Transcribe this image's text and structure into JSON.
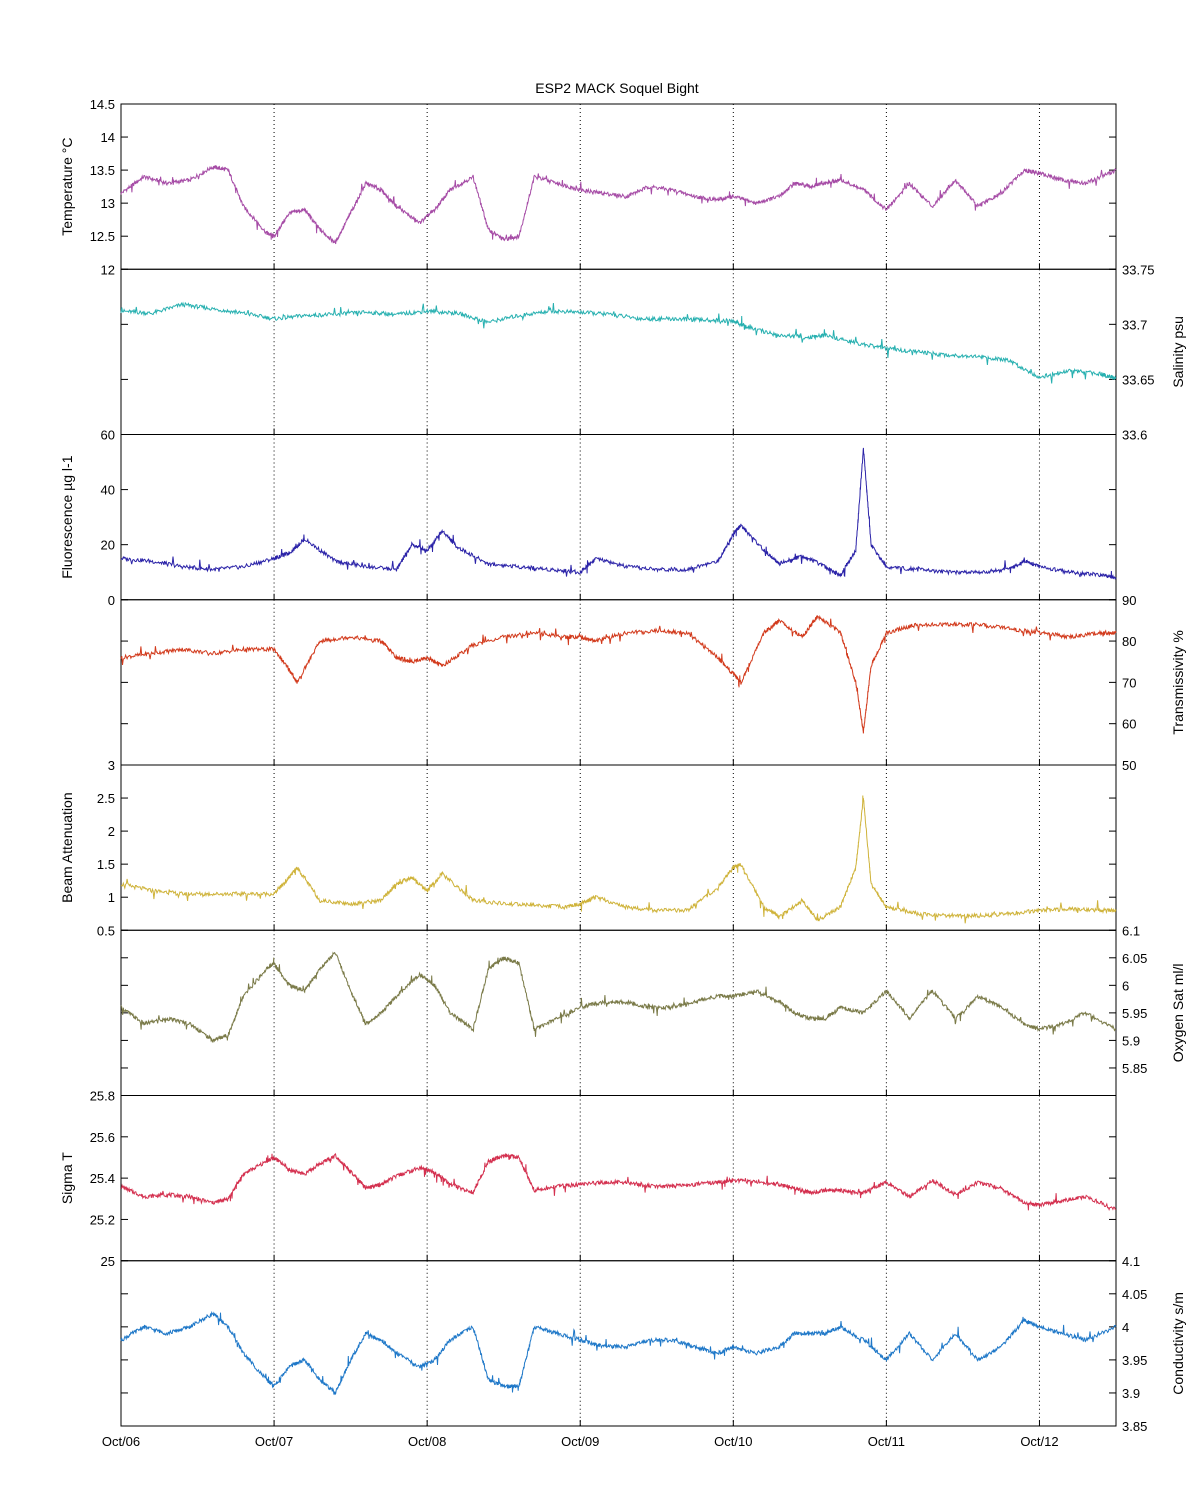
{
  "chart_data": {
    "type": "line",
    "title": "ESP2 MACK  Soquel Bight",
    "x_tick_labels": [
      "Oct/06",
      "Oct/07",
      "Oct/08",
      "Oct/09",
      "Oct/10",
      "Oct/11",
      "Oct/12"
    ],
    "x_tick_values": [
      0,
      1,
      2,
      3,
      4,
      5,
      6
    ],
    "xlim": [
      0,
      6.5
    ],
    "x_grid": "dotted vertical lines at each day",
    "panels": [
      {
        "name": "temperature",
        "ylabel": "Temperature °C",
        "axis_side": "left",
        "ylim": [
          12,
          14.5
        ],
        "ticks": [
          12,
          12.5,
          13,
          13.5,
          14,
          14.5
        ],
        "tick_labels": [
          "12",
          "12.5",
          "13",
          "13.5",
          "14",
          "14.5"
        ],
        "color": "#a64ca6",
        "x": [
          0,
          0.15,
          0.3,
          0.45,
          0.6,
          0.7,
          0.8,
          0.95,
          1.0,
          1.1,
          1.2,
          1.3,
          1.4,
          1.5,
          1.6,
          1.7,
          1.8,
          1.95,
          2.05,
          2.15,
          2.3,
          2.4,
          2.5,
          2.6,
          2.7,
          2.85,
          3.0,
          3.15,
          3.3,
          3.45,
          3.6,
          3.75,
          3.9,
          4.0,
          4.15,
          4.3,
          4.4,
          4.5,
          4.6,
          4.7,
          4.85,
          5.0,
          5.15,
          5.3,
          5.45,
          5.6,
          5.75,
          5.9,
          6.0,
          6.15,
          6.3,
          6.5
        ],
        "y": [
          13.15,
          13.4,
          13.3,
          13.35,
          13.55,
          13.5,
          12.95,
          12.55,
          12.5,
          12.85,
          12.9,
          12.6,
          12.4,
          12.85,
          13.3,
          13.2,
          12.95,
          12.7,
          12.9,
          13.2,
          13.4,
          12.6,
          12.45,
          12.5,
          13.4,
          13.3,
          13.2,
          13.15,
          13.1,
          13.25,
          13.2,
          13.1,
          13.05,
          13.1,
          13.0,
          13.1,
          13.3,
          13.25,
          13.3,
          13.35,
          13.2,
          12.9,
          13.3,
          12.95,
          13.35,
          12.95,
          13.15,
          13.5,
          13.45,
          13.35,
          13.3,
          13.5
        ]
      },
      {
        "name": "salinity",
        "ylabel": "Salinity psu",
        "axis_side": "right",
        "ylim": [
          33.6,
          33.75
        ],
        "ticks": [
          33.6,
          33.65,
          33.7,
          33.75
        ],
        "tick_labels": [
          "33.6",
          "33.65",
          "33.7",
          "33.75"
        ],
        "color": "#27b0b0",
        "x": [
          0,
          0.2,
          0.4,
          0.6,
          0.8,
          1.0,
          1.2,
          1.4,
          1.6,
          1.8,
          2.0,
          2.2,
          2.4,
          2.6,
          2.8,
          3.0,
          3.2,
          3.4,
          3.6,
          3.8,
          4.0,
          4.1,
          4.3,
          4.5,
          4.6,
          4.8,
          5.0,
          5.2,
          5.4,
          5.6,
          5.8,
          6.0,
          6.2,
          6.4,
          6.5
        ],
        "y": [
          33.712,
          33.71,
          33.718,
          33.714,
          33.71,
          33.705,
          33.708,
          33.709,
          33.711,
          33.709,
          33.712,
          33.71,
          33.702,
          33.708,
          33.712,
          33.711,
          33.709,
          33.705,
          33.705,
          33.704,
          33.703,
          33.697,
          33.69,
          33.688,
          33.69,
          33.683,
          33.678,
          33.675,
          33.672,
          33.671,
          33.667,
          33.652,
          33.658,
          33.655,
          33.651
        ]
      },
      {
        "name": "fluorescence",
        "ylabel": "Fluorescence µg l-1",
        "axis_side": "left",
        "ylim": [
          0,
          60
        ],
        "ticks": [
          0,
          20,
          40,
          60
        ],
        "tick_labels": [
          "0",
          "20",
          "40",
          "60"
        ],
        "color": "#2b23a8",
        "x": [
          0,
          0.2,
          0.4,
          0.6,
          0.8,
          1.0,
          1.1,
          1.2,
          1.4,
          1.6,
          1.8,
          1.9,
          2.0,
          2.1,
          2.2,
          2.4,
          2.6,
          2.8,
          3.0,
          3.1,
          3.3,
          3.5,
          3.7,
          3.9,
          4.0,
          4.05,
          4.2,
          4.3,
          4.45,
          4.6,
          4.7,
          4.8,
          4.85,
          4.9,
          5.0,
          5.2,
          5.4,
          5.6,
          5.8,
          5.9,
          6.0,
          6.2,
          6.4,
          6.5
        ],
        "y": [
          15,
          14,
          12,
          11,
          12,
          15,
          17,
          22,
          14,
          12,
          11,
          20,
          18,
          25,
          19,
          13,
          12,
          11,
          10,
          15,
          12,
          11,
          11,
          14,
          24,
          27,
          18,
          13,
          16,
          12,
          9,
          18,
          55,
          20,
          12,
          11,
          10,
          10,
          11,
          14,
          12,
          10,
          9,
          8
        ]
      },
      {
        "name": "transmissivity",
        "ylabel": "Transmissivity %",
        "axis_side": "right",
        "ylim": [
          50,
          90
        ],
        "ticks": [
          50,
          60,
          70,
          80,
          90
        ],
        "tick_labels": [
          "50",
          "60",
          "70",
          "80",
          "90"
        ],
        "color": "#d23a1c",
        "x": [
          0,
          0.2,
          0.4,
          0.6,
          0.8,
          1.0,
          1.1,
          1.15,
          1.3,
          1.5,
          1.7,
          1.8,
          1.9,
          2.0,
          2.1,
          2.3,
          2.5,
          2.7,
          2.9,
          3.0,
          3.1,
          3.3,
          3.5,
          3.7,
          3.9,
          4.0,
          4.05,
          4.2,
          4.3,
          4.45,
          4.55,
          4.7,
          4.8,
          4.85,
          4.9,
          5.0,
          5.2,
          5.4,
          5.6,
          5.8,
          6.0,
          6.2,
          6.4,
          6.5
        ],
        "y": [
          76,
          77,
          78,
          77,
          78,
          78,
          73,
          70,
          80,
          81,
          80,
          76,
          75,
          76,
          74,
          79,
          81,
          82,
          81,
          81,
          80,
          82,
          82.5,
          82,
          76,
          72,
          70,
          82,
          85,
          81,
          86,
          82,
          70,
          58,
          74,
          82,
          84,
          84,
          84,
          83,
          82,
          81,
          82,
          82
        ]
      },
      {
        "name": "beam-attenuation",
        "ylabel": "Beam Attenuation",
        "axis_side": "left",
        "ylim": [
          0.5,
          3
        ],
        "ticks": [
          0.5,
          1,
          1.5,
          2,
          2.5,
          3
        ],
        "tick_labels": [
          "0.5",
          "1",
          "1.5",
          "2",
          "2.5",
          "3"
        ],
        "color": "#cfb33a",
        "x": [
          0,
          0.2,
          0.4,
          0.6,
          0.8,
          1.0,
          1.1,
          1.15,
          1.3,
          1.5,
          1.7,
          1.8,
          1.9,
          2.0,
          2.1,
          2.3,
          2.5,
          2.7,
          2.9,
          3.0,
          3.1,
          3.3,
          3.5,
          3.7,
          3.9,
          4.0,
          4.05,
          4.2,
          4.3,
          4.45,
          4.55,
          4.7,
          4.8,
          4.85,
          4.9,
          5.0,
          5.2,
          5.4,
          5.6,
          5.8,
          6.0,
          6.2,
          6.4,
          6.5
        ],
        "y": [
          1.2,
          1.1,
          1.05,
          1.05,
          1.05,
          1.05,
          1.3,
          1.45,
          0.95,
          0.9,
          0.95,
          1.2,
          1.3,
          1.1,
          1.35,
          0.95,
          0.9,
          0.88,
          0.85,
          0.9,
          1.0,
          0.85,
          0.8,
          0.8,
          1.15,
          1.45,
          1.5,
          0.85,
          0.7,
          0.95,
          0.65,
          0.85,
          1.45,
          2.5,
          1.2,
          0.85,
          0.75,
          0.72,
          0.72,
          0.75,
          0.8,
          0.82,
          0.8,
          0.8
        ]
      },
      {
        "name": "oxygen-sat",
        "ylabel": "Oxygen Sat ml/l",
        "axis_side": "right",
        "ylim": [
          5.8,
          6.1
        ],
        "ticks": [
          5.85,
          5.9,
          5.95,
          6.0,
          6.05,
          6.1
        ],
        "tick_labels": [
          "5.85",
          "5.9",
          "5.95",
          "6",
          "6.05",
          "6.1"
        ],
        "color": "#7a7a48",
        "x": [
          0,
          0.15,
          0.3,
          0.45,
          0.6,
          0.7,
          0.8,
          0.95,
          1.0,
          1.1,
          1.2,
          1.3,
          1.4,
          1.5,
          1.6,
          1.7,
          1.8,
          1.95,
          2.05,
          2.15,
          2.3,
          2.4,
          2.5,
          2.6,
          2.7,
          2.85,
          3.0,
          3.15,
          3.3,
          3.45,
          3.6,
          3.75,
          3.9,
          4.0,
          4.15,
          4.3,
          4.4,
          4.5,
          4.6,
          4.7,
          4.85,
          5.0,
          5.15,
          5.3,
          5.45,
          5.6,
          5.75,
          5.9,
          6.0,
          6.15,
          6.3,
          6.5
        ],
        "y": [
          5.96,
          5.93,
          5.94,
          5.93,
          5.9,
          5.91,
          5.98,
          6.03,
          6.04,
          6.0,
          5.99,
          6.03,
          6.06,
          5.99,
          5.93,
          5.95,
          5.98,
          6.02,
          6.0,
          5.95,
          5.92,
          6.03,
          6.05,
          6.04,
          5.92,
          5.94,
          5.96,
          5.97,
          5.97,
          5.96,
          5.96,
          5.97,
          5.98,
          5.98,
          5.99,
          5.97,
          5.95,
          5.94,
          5.94,
          5.96,
          5.95,
          5.99,
          5.94,
          5.99,
          5.94,
          5.98,
          5.96,
          5.93,
          5.92,
          5.93,
          5.95,
          5.92
        ]
      },
      {
        "name": "sigma-t",
        "ylabel": "Sigma T",
        "axis_side": "left",
        "ylim": [
          25,
          25.8
        ],
        "ticks": [
          25,
          25.2,
          25.4,
          25.6,
          25.8
        ],
        "tick_labels": [
          "25",
          "25.2",
          "25.4",
          "25.6",
          "25.8"
        ],
        "color": "#d4304f",
        "x": [
          0,
          0.15,
          0.3,
          0.45,
          0.6,
          0.7,
          0.8,
          0.95,
          1.0,
          1.1,
          1.2,
          1.3,
          1.4,
          1.5,
          1.6,
          1.7,
          1.8,
          1.95,
          2.05,
          2.15,
          2.3,
          2.4,
          2.5,
          2.6,
          2.7,
          2.85,
          3.0,
          3.15,
          3.3,
          3.45,
          3.6,
          3.75,
          3.9,
          4.0,
          4.15,
          4.3,
          4.4,
          4.5,
          4.6,
          4.7,
          4.85,
          5.0,
          5.15,
          5.3,
          5.45,
          5.6,
          5.75,
          5.9,
          6.0,
          6.15,
          6.3,
          6.5
        ],
        "y": [
          25.36,
          25.31,
          25.32,
          25.31,
          25.28,
          25.3,
          25.42,
          25.48,
          25.5,
          25.44,
          25.42,
          25.47,
          25.51,
          25.43,
          25.35,
          25.37,
          25.41,
          25.45,
          25.43,
          25.37,
          25.33,
          25.48,
          25.51,
          25.5,
          25.34,
          25.36,
          25.37,
          25.38,
          25.38,
          25.36,
          25.36,
          25.37,
          25.38,
          25.39,
          25.38,
          25.37,
          25.35,
          25.33,
          25.34,
          25.34,
          25.33,
          25.38,
          25.31,
          25.39,
          25.32,
          25.38,
          25.35,
          25.28,
          25.27,
          25.29,
          25.31,
          25.25
        ]
      },
      {
        "name": "conductivity",
        "ylabel": "Conductivity s/m",
        "axis_side": "right",
        "ylim": [
          3.85,
          4.1
        ],
        "ticks": [
          3.85,
          3.9,
          3.95,
          4.0,
          4.05,
          4.1
        ],
        "tick_labels": [
          "3.85",
          "3.9",
          "3.95",
          "4",
          "4.05",
          "4.1"
        ],
        "color": "#1f78c8",
        "x": [
          0,
          0.15,
          0.3,
          0.45,
          0.6,
          0.7,
          0.8,
          0.95,
          1.0,
          1.1,
          1.2,
          1.3,
          1.4,
          1.5,
          1.6,
          1.7,
          1.8,
          1.95,
          2.05,
          2.15,
          2.3,
          2.4,
          2.5,
          2.6,
          2.7,
          2.85,
          3.0,
          3.15,
          3.3,
          3.45,
          3.6,
          3.75,
          3.9,
          4.0,
          4.15,
          4.3,
          4.4,
          4.5,
          4.6,
          4.7,
          4.85,
          5.0,
          5.15,
          5.3,
          5.45,
          5.6,
          5.75,
          5.9,
          6.0,
          6.15,
          6.3,
          6.5
        ],
        "y": [
          3.98,
          4.0,
          3.99,
          4.0,
          4.02,
          4.0,
          3.96,
          3.92,
          3.91,
          3.94,
          3.95,
          3.92,
          3.9,
          3.95,
          3.99,
          3.98,
          3.96,
          3.94,
          3.95,
          3.98,
          4.0,
          3.92,
          3.91,
          3.91,
          4.0,
          3.99,
          3.98,
          3.97,
          3.97,
          3.98,
          3.98,
          3.97,
          3.96,
          3.97,
          3.96,
          3.97,
          3.99,
          3.99,
          3.99,
          4.0,
          3.98,
          3.95,
          3.99,
          3.95,
          3.99,
          3.95,
          3.97,
          4.01,
          4.0,
          3.99,
          3.98,
          4.0
        ]
      }
    ]
  }
}
